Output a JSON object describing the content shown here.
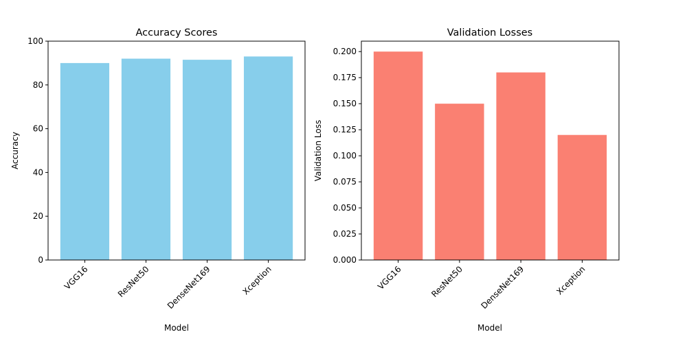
{
  "chart_data": [
    {
      "type": "bar",
      "title": "Accuracy Scores",
      "xlabel": "Model",
      "ylabel": "Accuracy",
      "categories": [
        "VGG16",
        "ResNet50",
        "DenseNet169",
        "Xception"
      ],
      "values": [
        90,
        92,
        91.5,
        93
      ],
      "ylim": [
        0,
        100
      ],
      "yticks": [
        0,
        20,
        40,
        60,
        80,
        100
      ],
      "ytick_labels": [
        "0",
        "20",
        "40",
        "60",
        "80",
        "100"
      ],
      "bar_color": "#87ceeb",
      "xtick_rotation": 45,
      "grid": false
    },
    {
      "type": "bar",
      "title": "Validation Losses",
      "xlabel": "Model",
      "ylabel": "Validation Loss",
      "categories": [
        "VGG16",
        "ResNet50",
        "DenseNet169",
        "Xception"
      ],
      "values": [
        0.2,
        0.15,
        0.18,
        0.12
      ],
      "ylim": [
        0,
        0.21
      ],
      "yticks": [
        0,
        0.025,
        0.05,
        0.075,
        0.1,
        0.125,
        0.15,
        0.175,
        0.2
      ],
      "ytick_labels": [
        "0.000",
        "0.025",
        "0.050",
        "0.075",
        "0.100",
        "0.125",
        "0.150",
        "0.175",
        "0.200"
      ],
      "bar_color": "#fa8072",
      "xtick_rotation": 45,
      "grid": false
    }
  ]
}
